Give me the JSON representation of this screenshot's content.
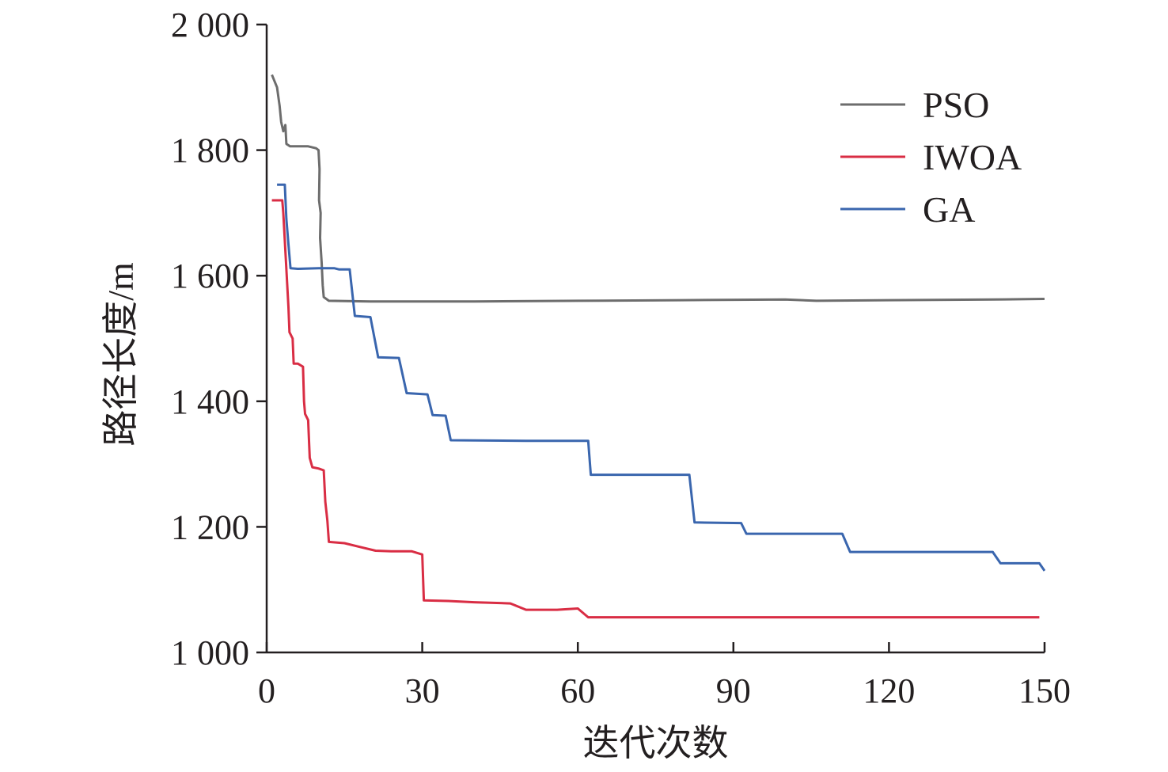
{
  "chart_data": {
    "type": "line",
    "xlabel": "迭代次数",
    "ylabel": "路径长度/m",
    "xlim": [
      0,
      150
    ],
    "ylim": [
      1000,
      2000
    ],
    "xticks": [
      0,
      30,
      60,
      90,
      120,
      150
    ],
    "yticks": [
      1000,
      1200,
      1400,
      1600,
      1800,
      2000
    ],
    "xtick_labels": [
      "0",
      "30",
      "60",
      "90",
      "120",
      "150"
    ],
    "ytick_labels": [
      "1 000",
      "1 200",
      "1 400",
      "1 600",
      "1 800",
      "2 000"
    ],
    "grid": false,
    "legend_position": "top-right",
    "series": [
      {
        "name": "PSO",
        "color": "#6d6d6d",
        "points": [
          [
            1,
            1920
          ],
          [
            2,
            1900
          ],
          [
            2.5,
            1870
          ],
          [
            2.8,
            1845
          ],
          [
            3.2,
            1830
          ],
          [
            3.6,
            1840
          ],
          [
            3.8,
            1810
          ],
          [
            4.5,
            1806
          ],
          [
            8,
            1806
          ],
          [
            9.5,
            1803
          ],
          [
            10,
            1800
          ],
          [
            10.2,
            1770
          ],
          [
            10.1,
            1720
          ],
          [
            10.4,
            1700
          ],
          [
            10.3,
            1660
          ],
          [
            10.6,
            1620
          ],
          [
            10.8,
            1585
          ],
          [
            11,
            1566
          ],
          [
            12,
            1560
          ],
          [
            20,
            1559
          ],
          [
            40,
            1559
          ],
          [
            60,
            1560
          ],
          [
            80,
            1561
          ],
          [
            100,
            1562
          ],
          [
            106,
            1560
          ],
          [
            120,
            1561
          ],
          [
            140,
            1562
          ],
          [
            150,
            1563
          ]
        ]
      },
      {
        "name": "IWOA",
        "color": "#d92d44",
        "points": [
          [
            1,
            1720
          ],
          [
            3,
            1720
          ],
          [
            3.2,
            1700
          ],
          [
            3.6,
            1640
          ],
          [
            4.2,
            1550
          ],
          [
            4.4,
            1510
          ],
          [
            5,
            1500
          ],
          [
            5.2,
            1460
          ],
          [
            6,
            1460
          ],
          [
            7,
            1455
          ],
          [
            7.2,
            1400
          ],
          [
            7.4,
            1380
          ],
          [
            8,
            1370
          ],
          [
            8.3,
            1310
          ],
          [
            8.8,
            1295
          ],
          [
            10,
            1293
          ],
          [
            11,
            1290
          ],
          [
            11.3,
            1240
          ],
          [
            11.7,
            1210
          ],
          [
            12,
            1176
          ],
          [
            15,
            1174
          ],
          [
            18,
            1168
          ],
          [
            21,
            1162
          ],
          [
            24,
            1161
          ],
          [
            28,
            1161
          ],
          [
            30,
            1156
          ],
          [
            30.3,
            1083
          ],
          [
            35,
            1082
          ],
          [
            40,
            1080
          ],
          [
            47,
            1078
          ],
          [
            50,
            1068
          ],
          [
            56,
            1068
          ],
          [
            60,
            1070
          ],
          [
            62,
            1056
          ],
          [
            80,
            1056
          ],
          [
            100,
            1056
          ],
          [
            120,
            1056
          ],
          [
            140,
            1056
          ],
          [
            149,
            1056
          ]
        ]
      },
      {
        "name": "GA",
        "color": "#3a66ae",
        "points": [
          [
            2,
            1745
          ],
          [
            3.5,
            1745
          ],
          [
            3.8,
            1690
          ],
          [
            4.2,
            1650
          ],
          [
            4.6,
            1612
          ],
          [
            6,
            1611
          ],
          [
            10,
            1612
          ],
          [
            13,
            1612
          ],
          [
            14,
            1610
          ],
          [
            16,
            1610
          ],
          [
            17,
            1536
          ],
          [
            20,
            1534
          ],
          [
            21.5,
            1470
          ],
          [
            25.5,
            1469
          ],
          [
            27,
            1413
          ],
          [
            31,
            1411
          ],
          [
            32,
            1378
          ],
          [
            34.5,
            1377
          ],
          [
            35.5,
            1338
          ],
          [
            50,
            1337
          ],
          [
            62,
            1337
          ],
          [
            62.5,
            1283
          ],
          [
            70,
            1283
          ],
          [
            81.5,
            1283
          ],
          [
            82.5,
            1207
          ],
          [
            91.5,
            1206
          ],
          [
            92.5,
            1189
          ],
          [
            100,
            1189
          ],
          [
            111,
            1189
          ],
          [
            112.5,
            1160
          ],
          [
            130,
            1160
          ],
          [
            140,
            1160
          ],
          [
            141.5,
            1142
          ],
          [
            144,
            1142
          ],
          [
            149,
            1142
          ],
          [
            150,
            1130
          ]
        ]
      }
    ]
  }
}
